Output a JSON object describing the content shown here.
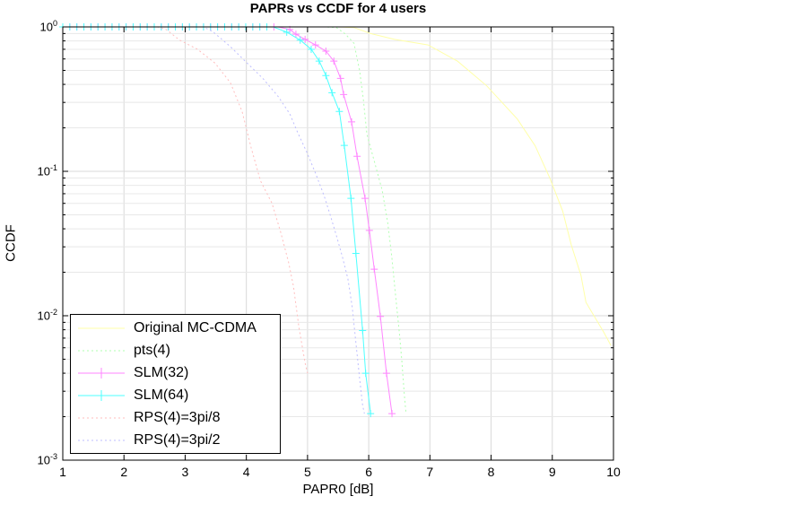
{
  "chart_data": {
    "type": "line",
    "title": "PAPRs vs CCDF for 4 users",
    "xlabel": "PAPR0 [dB]",
    "ylabel": "CCDF",
    "x_axis": {
      "min": 1,
      "max": 10,
      "tick_labels": [
        "1",
        "2",
        "3",
        "4",
        "5",
        "6",
        "7",
        "8",
        "9",
        "10"
      ]
    },
    "y_axis": {
      "scale": "log",
      "min": 0.001,
      "max": 1,
      "tick_labels": [
        {
          "base": "10",
          "exp": "0"
        },
        {
          "base": "10",
          "exp": "-1"
        },
        {
          "base": "10",
          "exp": "-2"
        },
        {
          "base": "10",
          "exp": "-3"
        }
      ]
    },
    "grid": true,
    "legend_position": "southwest",
    "series": [
      {
        "name": "Original MC-CDMA",
        "color": "#ffffa8",
        "style": "solid",
        "marker": null,
        "points": [
          [
            1,
            1
          ],
          [
            5.5,
            1
          ],
          [
            5.76,
            0.99
          ],
          [
            6.03,
            0.9
          ],
          [
            6.42,
            0.82
          ],
          [
            6.97,
            0.75
          ],
          [
            7.45,
            0.58
          ],
          [
            7.93,
            0.39
          ],
          [
            8.43,
            0.23
          ],
          [
            8.72,
            0.15
          ],
          [
            8.96,
            0.09
          ],
          [
            9.17,
            0.053
          ],
          [
            9.31,
            0.031
          ],
          [
            9.47,
            0.019
          ],
          [
            9.55,
            0.0124
          ],
          [
            9.68,
            0.01
          ],
          [
            9.84,
            0.0077
          ],
          [
            9.96,
            0.0062
          ]
        ]
      },
      {
        "name": "pts(4)",
        "color": "#b0ffb0",
        "style": "dotted",
        "marker": null,
        "points": [
          [
            1,
            1
          ],
          [
            5.3,
            1
          ],
          [
            5.47,
            0.99
          ],
          [
            5.62,
            0.89
          ],
          [
            5.76,
            0.77
          ],
          [
            5.85,
            0.5
          ],
          [
            5.91,
            0.32
          ],
          [
            5.97,
            0.18
          ],
          [
            6.1,
            0.114
          ],
          [
            6.22,
            0.074
          ],
          [
            6.31,
            0.044
          ],
          [
            6.38,
            0.025
          ],
          [
            6.44,
            0.0137
          ],
          [
            6.5,
            0.0077
          ],
          [
            6.54,
            0.0049
          ],
          [
            6.58,
            0.0029
          ],
          [
            6.61,
            0.0021
          ]
        ]
      },
      {
        "name": "SLM(32)",
        "color": "#ff85ff",
        "style": "solid",
        "marker": "plus",
        "flat_markers": {
          "from": 1.0,
          "to": 4.52,
          "step": 0.115,
          "y": 1.0
        },
        "points": [
          [
            1,
            1
          ],
          [
            4.52,
            1
          ],
          [
            4.71,
            0.96
          ],
          [
            4.81,
            0.89
          ],
          [
            4.96,
            0.82
          ],
          [
            5.13,
            0.75
          ],
          [
            5.3,
            0.68
          ],
          [
            5.43,
            0.58
          ],
          [
            5.54,
            0.44
          ],
          [
            5.59,
            0.34
          ],
          [
            5.72,
            0.22
          ],
          [
            5.81,
            0.127
          ],
          [
            5.94,
            0.065
          ],
          [
            6.01,
            0.039
          ],
          [
            6.09,
            0.021
          ],
          [
            6.19,
            0.0099
          ],
          [
            6.29,
            0.004
          ],
          [
            6.38,
            0.0021
          ]
        ]
      },
      {
        "name": "SLM(64)",
        "color": "#4dffff",
        "style": "solid",
        "marker": "plus",
        "flat_markers": {
          "from": 1.0,
          "to": 4.44,
          "step": 0.115,
          "y": 1.0
        },
        "points": [
          [
            1,
            1
          ],
          [
            4.44,
            1
          ],
          [
            4.66,
            0.92
          ],
          [
            4.88,
            0.81
          ],
          [
            5.06,
            0.7
          ],
          [
            5.19,
            0.58
          ],
          [
            5.3,
            0.46
          ],
          [
            5.4,
            0.35
          ],
          [
            5.52,
            0.26
          ],
          [
            5.6,
            0.151
          ],
          [
            5.71,
            0.065
          ],
          [
            5.79,
            0.027
          ],
          [
            5.9,
            0.0079
          ],
          [
            5.95,
            0.004
          ],
          [
            6.03,
            0.0021
          ]
        ]
      },
      {
        "name": "RPS(4)=3pi/8",
        "color": "#ffbdbd",
        "style": "dotted",
        "marker": null,
        "points": [
          [
            1,
            1
          ],
          [
            2.55,
            1
          ],
          [
            2.69,
            0.96
          ],
          [
            2.91,
            0.81
          ],
          [
            3.2,
            0.7
          ],
          [
            3.49,
            0.56
          ],
          [
            3.74,
            0.41
          ],
          [
            3.93,
            0.26
          ],
          [
            4.08,
            0.145
          ],
          [
            4.23,
            0.086
          ],
          [
            4.42,
            0.06
          ],
          [
            4.56,
            0.038
          ],
          [
            4.69,
            0.0235
          ],
          [
            4.77,
            0.016
          ],
          [
            4.86,
            0.0083
          ],
          [
            4.96,
            0.0047
          ],
          [
            5.0,
            0.004
          ]
        ]
      },
      {
        "name": "RPS(4)=3pi/2",
        "color": "#bdbdff",
        "style": "dotted",
        "marker": null,
        "points": [
          [
            1,
            1
          ],
          [
            3.3,
            1
          ],
          [
            3.45,
            0.93
          ],
          [
            3.74,
            0.73
          ],
          [
            3.98,
            0.58
          ],
          [
            4.27,
            0.44
          ],
          [
            4.52,
            0.33
          ],
          [
            4.71,
            0.25
          ],
          [
            4.84,
            0.185
          ],
          [
            4.99,
            0.135
          ],
          [
            5.13,
            0.097
          ],
          [
            5.27,
            0.068
          ],
          [
            5.37,
            0.05
          ],
          [
            5.47,
            0.036
          ],
          [
            5.57,
            0.0255
          ],
          [
            5.66,
            0.018
          ],
          [
            5.73,
            0.0115
          ],
          [
            5.79,
            0.0065
          ],
          [
            5.85,
            0.0037
          ],
          [
            5.9,
            0.0024
          ],
          [
            5.93,
            0.0021
          ]
        ]
      }
    ],
    "colors": {
      "grid_minor": "#e8e8e8",
      "grid_major": "#d9d9d9",
      "axis": "#000000"
    }
  }
}
